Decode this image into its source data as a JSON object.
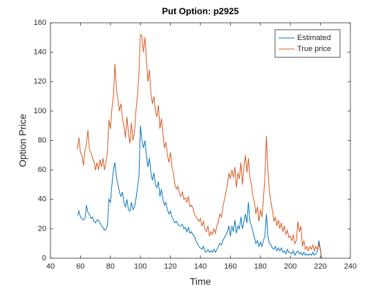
{
  "chart_data": {
    "type": "line",
    "title": "Put Option: p2925",
    "x_label": "Time",
    "y_label": "Option Price",
    "xlim": [
      40,
      240
    ],
    "ylim": [
      0,
      160
    ],
    "xticks": [
      40,
      60,
      80,
      100,
      120,
      140,
      160,
      180,
      200,
      220,
      240
    ],
    "yticks": [
      0,
      20,
      40,
      60,
      80,
      100,
      120,
      140,
      160
    ],
    "grid": false,
    "legend": "northeast",
    "x": [
      58,
      59,
      60,
      61,
      62,
      63,
      64,
      65,
      66,
      67,
      68,
      69,
      70,
      71,
      72,
      73,
      74,
      75,
      76,
      77,
      78,
      79,
      80,
      81,
      82,
      83,
      84,
      85,
      86,
      87,
      88,
      89,
      90,
      91,
      92,
      93,
      94,
      95,
      96,
      97,
      98,
      99,
      100,
      101,
      102,
      103,
      104,
      105,
      106,
      107,
      108,
      109,
      110,
      111,
      112,
      113,
      114,
      115,
      116,
      117,
      118,
      119,
      120,
      121,
      122,
      123,
      124,
      125,
      126,
      127,
      128,
      129,
      130,
      131,
      132,
      133,
      134,
      135,
      136,
      137,
      138,
      139,
      140,
      141,
      142,
      143,
      144,
      145,
      146,
      147,
      148,
      149,
      150,
      151,
      152,
      153,
      154,
      155,
      156,
      157,
      158,
      159,
      160,
      161,
      162,
      163,
      164,
      165,
      166,
      167,
      168,
      169,
      170,
      171,
      172,
      173,
      174,
      175,
      176,
      177,
      178,
      179,
      180,
      181,
      182,
      183,
      184,
      185,
      186,
      187,
      188,
      189,
      190,
      191,
      192,
      193,
      194,
      195,
      196,
      197,
      198,
      199,
      200,
      201,
      202,
      203,
      204,
      205,
      206,
      207,
      208,
      209,
      210,
      211,
      212,
      213,
      214,
      215,
      216,
      217,
      218,
      219,
      220,
      221
    ],
    "series": [
      {
        "name": "Estimated",
        "color": "#0072bd",
        "values": [
          29,
          32,
          28,
          27,
          26,
          27,
          36,
          31,
          30,
          27,
          28,
          25,
          24,
          26,
          26,
          24,
          22,
          21,
          19,
          20,
          22,
          40,
          38,
          50,
          60,
          65,
          55,
          50,
          45,
          42,
          45,
          38,
          35,
          40,
          33,
          32,
          38,
          33,
          35,
          40,
          48,
          55,
          90,
          80,
          75,
          80,
          70,
          62,
          68,
          58,
          53,
          58,
          50,
          48,
          52,
          42,
          47,
          40,
          36,
          38,
          33,
          30,
          32,
          28,
          26,
          24,
          25,
          23,
          22,
          22,
          23,
          20,
          21,
          18,
          21,
          17,
          18,
          16,
          15,
          12,
          10,
          8,
          7,
          6,
          8,
          5,
          4,
          6,
          4,
          5,
          4,
          6,
          4,
          6,
          8,
          10,
          9,
          12,
          14,
          16,
          18,
          22,
          15,
          22,
          18,
          26,
          17,
          22,
          20,
          28,
          20,
          25,
          30,
          24,
          38,
          25,
          22,
          18,
          14,
          10,
          12,
          8,
          11,
          8,
          12,
          15,
          30,
          15,
          10,
          9,
          7,
          6,
          8,
          5,
          7,
          5,
          7,
          4,
          5,
          3,
          6,
          4,
          4,
          3,
          5,
          2,
          4,
          5,
          3,
          4,
          2,
          4,
          2,
          3,
          2,
          3,
          2,
          4,
          2,
          3,
          5,
          12,
          6,
          0
        ]
      },
      {
        "name": "True price",
        "color": "#d95319",
        "values": [
          74,
          82,
          72,
          70,
          63,
          73,
          78,
          87,
          74,
          72,
          68,
          66,
          60,
          65,
          60,
          67,
          62,
          68,
          60,
          65,
          72,
          94,
          88,
          102,
          110,
          132,
          115,
          108,
          100,
          105,
          95,
          90,
          82,
          96,
          85,
          78,
          92,
          80,
          85,
          100,
          110,
          125,
          152,
          151,
          140,
          150,
          135,
          120,
          128,
          112,
          105,
          110,
          100,
          96,
          104,
          88,
          95,
          85,
          75,
          79,
          70,
          65,
          72,
          62,
          58,
          50,
          47,
          49,
          44,
          42,
          45,
          40,
          41,
          38,
          42,
          35,
          36,
          34,
          30,
          28,
          27,
          25,
          27,
          22,
          25,
          20,
          18,
          22,
          15,
          18,
          16,
          20,
          17,
          22,
          25,
          30,
          28,
          35,
          40,
          45,
          50,
          58,
          54,
          60,
          55,
          62,
          48,
          58,
          54,
          65,
          50,
          62,
          70,
          58,
          68,
          55,
          50,
          42,
          38,
          30,
          35,
          25,
          33,
          28,
          40,
          55,
          83,
          60,
          45,
          38,
          33,
          25,
          28,
          22,
          26,
          20,
          24,
          18,
          22,
          16,
          19,
          14,
          15,
          12,
          16,
          10,
          12,
          25,
          18,
          22,
          8,
          12,
          6,
          8,
          5,
          8,
          6,
          9,
          5,
          8,
          6,
          10,
          5,
          0
        ]
      }
    ]
  }
}
